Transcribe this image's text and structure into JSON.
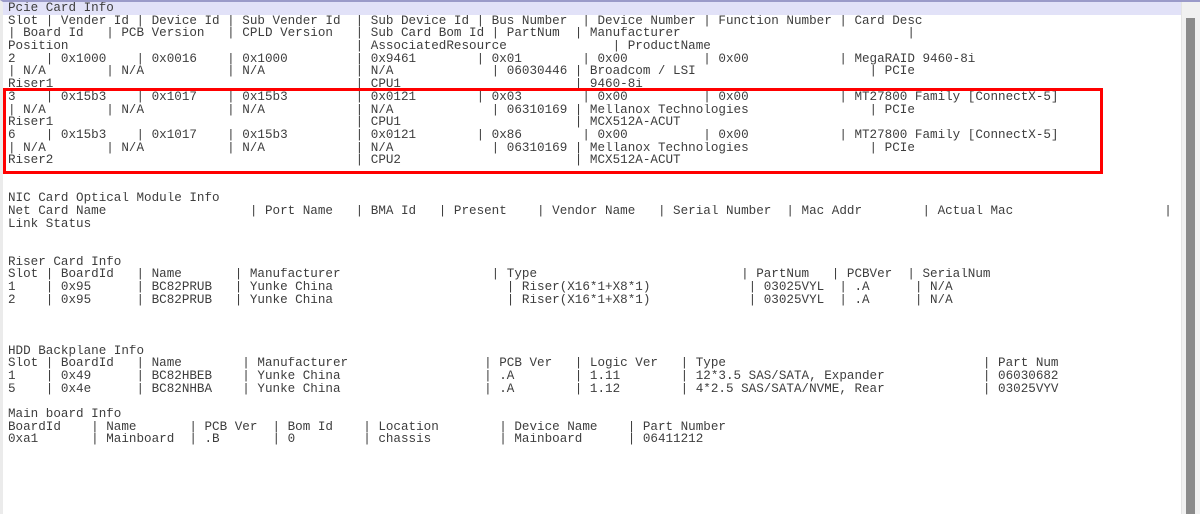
{
  "colors": {
    "background": "#ffffff",
    "text": "#3d3d3d",
    "highlight_bar": "#e2e2f8",
    "top_border": "#9b9bc9",
    "scrollbar_track": "#f1f1f1",
    "scrollbar_thumb": "#8b8b8b",
    "annotation_red": "#ff0000"
  },
  "red_box": {
    "color": "#ff0000",
    "start_line_index": 7,
    "end_line_index": 12
  },
  "screen": {
    "highlighted_line_index": 0,
    "lines": [
      "Pcie Card Info",
      "Slot | Vender Id | Device Id | Sub Vender Id  | Sub Device Id | Bus Number  | Device Number | Function Number | Card Desc",
      "| Board Id   | PCB Version   | CPLD Version   | Sub Card Bom Id | PartNum  | Manufacturer                              |",
      "Position                                      | AssociatedResource              | ProductName",
      "2    | 0x1000    | 0x0016    | 0x1000         | 0x9461        | 0x01        | 0x00          | 0x00            | MegaRAID 9460-8i",
      "| N/A        | N/A           | N/A            | N/A             | 06030446 | Broadcom / LSI                       | PCIe",
      "Riser1                                        | CPU1                       | 9460-8i",
      "3    | 0x15b3    | 0x1017    | 0x15b3         | 0x0121        | 0x03        | 0x00          | 0x00            | MT27800 Family [ConnectX-5]",
      "| N/A        | N/A           | N/A            | N/A             | 06310169 | Mellanox Technologies                | PCIe",
      "Riser1                                        | CPU1                       | MCX512A-ACUT",
      "6    | 0x15b3    | 0x1017    | 0x15b3         | 0x0121        | 0x86        | 0x00          | 0x00            | MT27800 Family [ConnectX-5]",
      "| N/A        | N/A           | N/A            | N/A             | 06310169 | Mellanox Technologies                | PCIe",
      "Riser2                                        | CPU2                       | MCX512A-ACUT",
      "",
      "",
      "NIC Card Optical Module Info",
      "Net Card Name                   | Port Name   | BMA Id   | Present    | Vendor Name   | Serial Number  | Mac Addr        | Actual Mac                    |",
      "Link Status",
      "",
      "",
      "Riser Card Info",
      "Slot | BoardId   | Name       | Manufacturer                    | Type                           | PartNum   | PCBVer  | SerialNum",
      "1    | 0x95      | BC82PRUB   | Yunke China                       | Riser(X16*1+X8*1)             | 03025VYL  | .A      | N/A",
      "2    | 0x95      | BC82PRUB   | Yunke China                       | Riser(X16*1+X8*1)             | 03025VYL  | .A      | N/A",
      "",
      "",
      "",
      "HDD Backplane Info",
      "Slot | BoardId   | Name        | Manufacturer                  | PCB Ver   | Logic Ver   | Type                                  | Part Num",
      "1    | 0x49      | BC82HBEB    | Yunke China                   | .A        | 1.11        | 12*3.5 SAS/SATA, Expander             | 06030682",
      "5    | 0x4e      | BC82NHBA    | Yunke China                   | .A        | 1.12        | 4*2.5 SAS/SATA/NVME, Rear             | 03025VYV",
      "",
      "Main board Info",
      "BoardId    | Name       | PCB Ver  | Bom Id    | Location        | Device Name    | Part Number",
      "0xa1       | Mainboard  | .B       | 0         | chassis         | Mainboard      | 06411212"
    ]
  },
  "sections": [
    {
      "title": "Pcie Card Info",
      "columns": [
        "Slot",
        "Vender Id",
        "Device Id",
        "Sub Vender Id",
        "Sub Device Id",
        "Bus Number",
        "Device Number",
        "Function Number",
        "Card Desc",
        "Board Id",
        "PCB Version",
        "CPLD Version",
        "Sub Card Bom Id",
        "PartNum",
        "Manufacturer",
        "Position",
        "AssociatedResource",
        "ProductName"
      ],
      "rows": [
        [
          "2",
          "0x1000",
          "0x0016",
          "0x1000",
          "0x9461",
          "0x01",
          "0x00",
          "0x00",
          "MegaRAID 9460-8i",
          "N/A",
          "N/A",
          "N/A",
          "N/A",
          "06030446",
          "Broadcom / LSI",
          "Riser1",
          "CPU1",
          "9460-8i"
        ],
        [
          "3",
          "0x15b3",
          "0x1017",
          "0x15b3",
          "0x0121",
          "0x03",
          "0x00",
          "0x00",
          "MT27800 Family [ConnectX-5]",
          "N/A",
          "N/A",
          "N/A",
          "N/A",
          "06310169",
          "Mellanox Technologies",
          "Riser1",
          "CPU1",
          "MCX512A-ACUT"
        ],
        [
          "6",
          "0x15b3",
          "0x1017",
          "0x15b3",
          "0x0121",
          "0x86",
          "0x00",
          "0x00",
          "MT27800 Family [ConnectX-5]",
          "N/A",
          "N/A",
          "N/A",
          "N/A",
          "06310169",
          "Mellanox Technologies",
          "Riser2",
          "CPU2",
          "MCX512A-ACUT"
        ]
      ]
    },
    {
      "title": "NIC Card Optical Module Info",
      "columns": [
        "Net Card Name",
        "Port Name",
        "BMA Id",
        "Present",
        "Vendor Name",
        "Serial Number",
        "Mac Addr",
        "Actual Mac",
        "Link Status"
      ],
      "rows": []
    },
    {
      "title": "Riser Card Info",
      "columns": [
        "Slot",
        "BoardId",
        "Name",
        "Manufacturer",
        "Type",
        "PartNum",
        "PCBVer",
        "SerialNum"
      ],
      "rows": [
        [
          "1",
          "0x95",
          "BC82PRUB",
          "Yunke China",
          "Riser(X16*1+X8*1)",
          "03025VYL",
          ".A",
          "N/A"
        ],
        [
          "2",
          "0x95",
          "BC82PRUB",
          "Yunke China",
          "Riser(X16*1+X8*1)",
          "03025VYL",
          ".A",
          "N/A"
        ]
      ]
    },
    {
      "title": "HDD Backplane Info",
      "columns": [
        "Slot",
        "BoardId",
        "Name",
        "Manufacturer",
        "PCB Ver",
        "Logic Ver",
        "Type",
        "Part Num"
      ],
      "rows": [
        [
          "1",
          "0x49",
          "BC82HBEB",
          "Yunke China",
          ".A",
          "1.11",
          "12*3.5 SAS/SATA, Expander",
          "06030682"
        ],
        [
          "5",
          "0x4e",
          "BC82NHBA",
          "Yunke China",
          ".A",
          "1.12",
          "4*2.5 SAS/SATA/NVME, Rear",
          "03025VYV"
        ]
      ]
    },
    {
      "title": "Main board Info",
      "columns": [
        "BoardId",
        "Name",
        "PCB Ver",
        "Bom Id",
        "Location",
        "Device Name",
        "Part Number"
      ],
      "rows": [
        [
          "0xa1",
          "Mainboard",
          ".B",
          "0",
          "chassis",
          "Mainboard",
          "06411212"
        ]
      ]
    }
  ]
}
